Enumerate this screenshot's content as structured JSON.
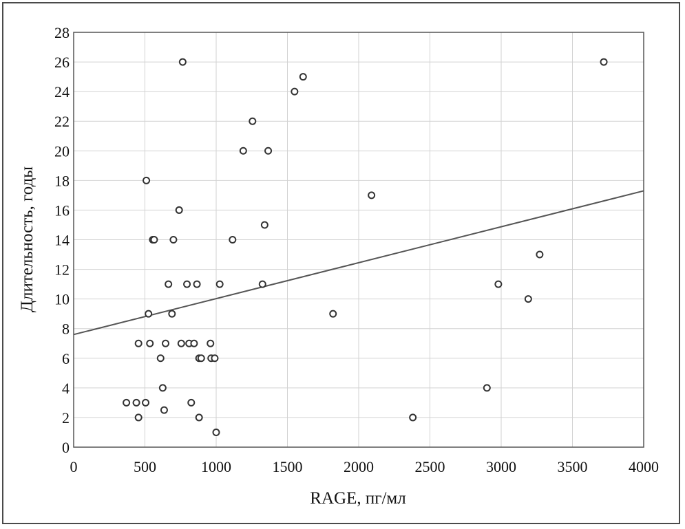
{
  "chart_data": {
    "type": "scatter",
    "title": "",
    "xlabel": "RAGE, пг/мл",
    "ylabel": "Длительность, годы",
    "xlim": [
      0,
      4000
    ],
    "ylim": [
      0,
      28
    ],
    "xticks": [
      0,
      500,
      1000,
      1500,
      2000,
      2500,
      3000,
      3500,
      4000
    ],
    "yticks": [
      0,
      2,
      4,
      6,
      8,
      10,
      12,
      14,
      16,
      18,
      20,
      22,
      24,
      26,
      28
    ],
    "grid": true,
    "legend": "none",
    "series": [
      {
        "marker": "open-circle",
        "color": "#333333",
        "points": [
          [
            370,
            3
          ],
          [
            440,
            3
          ],
          [
            455,
            2
          ],
          [
            455,
            7
          ],
          [
            505,
            3
          ],
          [
            510,
            18
          ],
          [
            525,
            9
          ],
          [
            535,
            7
          ],
          [
            555,
            14
          ],
          [
            565,
            14
          ],
          [
            610,
            6
          ],
          [
            625,
            4
          ],
          [
            635,
            2.5
          ],
          [
            645,
            7
          ],
          [
            665,
            11
          ],
          [
            690,
            9
          ],
          [
            700,
            14
          ],
          [
            740,
            16
          ],
          [
            755,
            7
          ],
          [
            765,
            26
          ],
          [
            795,
            11
          ],
          [
            810,
            7
          ],
          [
            825,
            3
          ],
          [
            845,
            7
          ],
          [
            865,
            11
          ],
          [
            880,
            2
          ],
          [
            880,
            6
          ],
          [
            895,
            6
          ],
          [
            960,
            7
          ],
          [
            965,
            6
          ],
          [
            990,
            6
          ],
          [
            1000,
            1
          ],
          [
            1025,
            11
          ],
          [
            1115,
            14
          ],
          [
            1190,
            20
          ],
          [
            1255,
            22
          ],
          [
            1325,
            11
          ],
          [
            1340,
            15
          ],
          [
            1365,
            20
          ],
          [
            1550,
            24
          ],
          [
            1610,
            25
          ],
          [
            1820,
            9
          ],
          [
            2090,
            17
          ],
          [
            2380,
            2
          ],
          [
            2900,
            4
          ],
          [
            2980,
            11
          ],
          [
            3190,
            10
          ],
          [
            3270,
            13
          ],
          [
            3720,
            26
          ]
        ]
      }
    ],
    "trendline": {
      "type": "linear",
      "points": [
        [
          0,
          7.6
        ],
        [
          4000,
          17.3
        ]
      ],
      "color": "#555555"
    }
  }
}
